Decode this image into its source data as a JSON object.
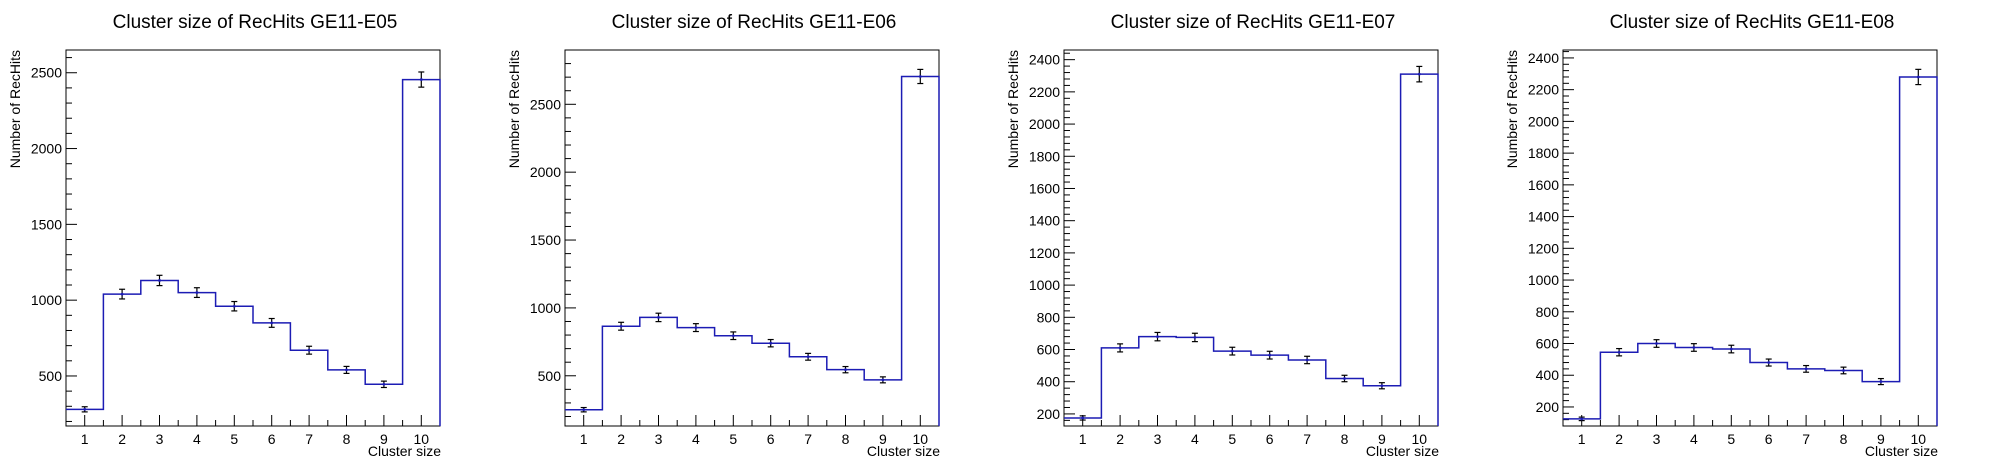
{
  "style": {
    "line_color": "#1c1cb4",
    "axis_color": "#000000",
    "background": "#ffffff"
  },
  "chart_data": [
    {
      "type": "bar",
      "histogram": true,
      "title": "Cluster size of RecHits GE11-E05",
      "xlabel": "Cluster size",
      "ylabel": "Number of RecHits",
      "categories": [
        "1",
        "2",
        "3",
        "4",
        "5",
        "6",
        "7",
        "8",
        "9",
        "10"
      ],
      "values": [
        280,
        1040,
        1130,
        1050,
        960,
        850,
        670,
        540,
        445,
        2455
      ],
      "errors": [
        17,
        32,
        34,
        32,
        31,
        29,
        26,
        23,
        21,
        50
      ],
      "xlim": [
        0.5,
        10.5
      ],
      "ylim": [
        170,
        2650
      ],
      "yticks": [
        500,
        1000,
        1500,
        2000,
        2500
      ]
    },
    {
      "type": "bar",
      "histogram": true,
      "title": "Cluster size of RecHits GE11-E06",
      "xlabel": "Cluster size",
      "ylabel": "Number of RecHits",
      "categories": [
        "1",
        "2",
        "3",
        "4",
        "5",
        "6",
        "7",
        "8",
        "9",
        "10"
      ],
      "values": [
        250,
        865,
        930,
        855,
        795,
        740,
        640,
        545,
        470,
        2705
      ],
      "errors": [
        16,
        29,
        31,
        29,
        28,
        27,
        25,
        23,
        22,
        52
      ],
      "xlim": [
        0.5,
        10.5
      ],
      "ylim": [
        130,
        2900
      ],
      "yticks": [
        500,
        1000,
        1500,
        2000,
        2500
      ]
    },
    {
      "type": "bar",
      "histogram": true,
      "title": "Cluster size of RecHits GE11-E07",
      "xlabel": "Cluster size",
      "ylabel": "Number of RecHits",
      "categories": [
        "1",
        "2",
        "3",
        "4",
        "5",
        "6",
        "7",
        "8",
        "9",
        "10"
      ],
      "values": [
        175,
        610,
        680,
        675,
        590,
        565,
        535,
        420,
        375,
        2310
      ],
      "errors": [
        13,
        25,
        26,
        26,
        24,
        24,
        23,
        20,
        19,
        48
      ],
      "xlim": [
        0.5,
        10.5
      ],
      "ylim": [
        125,
        2460
      ],
      "yticks": [
        200,
        400,
        600,
        800,
        1000,
        1200,
        1400,
        1600,
        1800,
        2000,
        2200,
        2400
      ]
    },
    {
      "type": "bar",
      "histogram": true,
      "title": "Cluster size of RecHits GE11-E08",
      "xlabel": "Cluster size",
      "ylabel": "Number of RecHits",
      "categories": [
        "1",
        "2",
        "3",
        "4",
        "5",
        "6",
        "7",
        "8",
        "9",
        "10"
      ],
      "values": [
        125,
        545,
        600,
        575,
        565,
        480,
        440,
        430,
        360,
        2280
      ],
      "errors": [
        11,
        23,
        24,
        24,
        24,
        22,
        21,
        21,
        19,
        48
      ],
      "xlim": [
        0.5,
        10.5
      ],
      "ylim": [
        80,
        2450
      ],
      "yticks": [
        200,
        400,
        600,
        800,
        1000,
        1200,
        1400,
        1600,
        1800,
        2000,
        2200,
        2400
      ]
    }
  ]
}
